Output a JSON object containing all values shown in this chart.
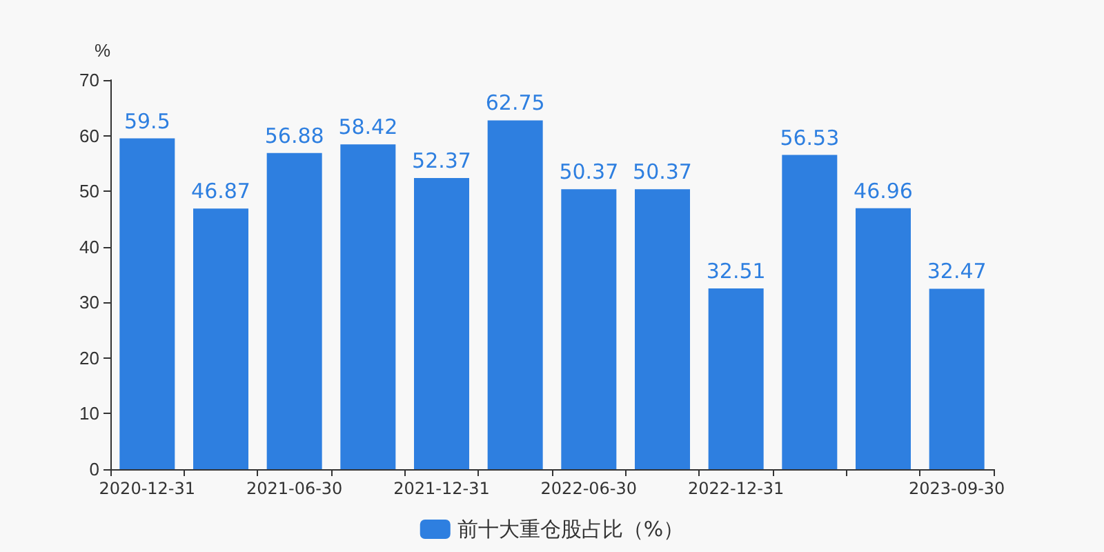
{
  "chart_data": {
    "type": "bar",
    "ylabel": "%",
    "categories": [
      "2020-12-31",
      null,
      "2021-06-30",
      null,
      "2021-12-31",
      null,
      "2022-06-30",
      null,
      "2022-12-31",
      null,
      null,
      "2023-09-30"
    ],
    "series": [
      {
        "name": "前十大重仓股占比（%）",
        "color": "#2e7fe0",
        "values": [
          59.5,
          46.87,
          56.88,
          58.42,
          52.37,
          62.75,
          50.37,
          50.37,
          32.51,
          56.53,
          46.96,
          32.47
        ]
      }
    ],
    "ylim": [
      0,
      70
    ],
    "yticks": [
      0,
      10,
      20,
      30,
      40,
      50,
      60,
      70
    ],
    "grid": false,
    "legend": "bottom",
    "data_labels": true
  }
}
